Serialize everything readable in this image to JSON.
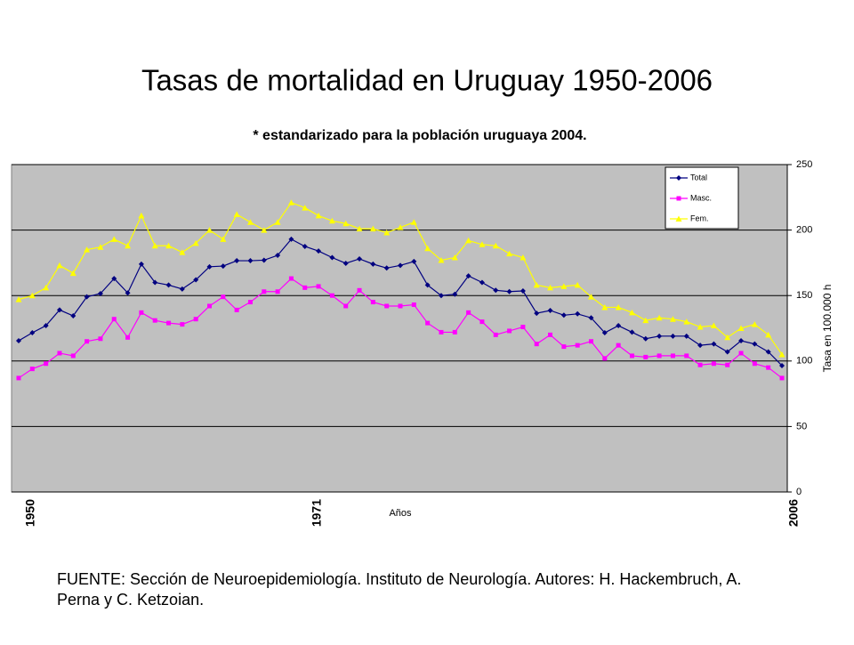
{
  "chart_data": {
    "type": "line",
    "title": "Tasas de mortalidad en Uruguay  1950-2006",
    "subtitle": "* estandarizado para la población uruguaya 2004.",
    "x_label": "Años",
    "y_label": "Tasa en 100.000 h",
    "source": "FUENTE: Sección de Neuroepidemiología. Instituto de Neurología. Autores: H. Hackembruch, A. Perna y C. Ketzoian.",
    "categories": [
      "1950",
      null,
      null,
      null,
      null,
      null,
      null,
      null,
      null,
      null,
      null,
      null,
      null,
      null,
      null,
      null,
      null,
      null,
      null,
      null,
      null,
      "1971",
      null,
      null,
      null,
      null,
      null,
      null,
      null,
      null,
      null,
      null,
      null,
      null,
      null,
      null,
      null,
      null,
      null,
      null,
      null,
      null,
      null,
      null,
      null,
      null,
      null,
      null,
      null,
      null,
      null,
      null,
      null,
      null,
      null,
      null,
      "2006"
    ],
    "series": [
      {
        "name": "Total",
        "color": "#000080",
        "marker": "diamond",
        "values": [
          115.5,
          121.6,
          127,
          139,
          134.5,
          149,
          151.5,
          163,
          152,
          174,
          160,
          158,
          155,
          162,
          172,
          172.5,
          176.6,
          176.6,
          177,
          180.7,
          193,
          187.5,
          184,
          179,
          174.6,
          178,
          174,
          171,
          173,
          176,
          158,
          150,
          151,
          165,
          160,
          154,
          153,
          153.5,
          136.5,
          138.6,
          135,
          136,
          133,
          121.6,
          127,
          122,
          117,
          119,
          119,
          119,
          112,
          113,
          107,
          115.5,
          113,
          107,
          96.5
        ]
      },
      {
        "name": "Masc.",
        "color": "#ff00ff",
        "marker": "square",
        "values": [
          87,
          94,
          98,
          106,
          104,
          115,
          117,
          132,
          118,
          137,
          131,
          129,
          128,
          132,
          142,
          149,
          139,
          145,
          153,
          153,
          163,
          156,
          157,
          150,
          142,
          154,
          145,
          142,
          142,
          143,
          129,
          122,
          122,
          137,
          130,
          120,
          123,
          126,
          113,
          120,
          111,
          112,
          115,
          102,
          112,
          104,
          103,
          104,
          104,
          104,
          97,
          98,
          97,
          106,
          98,
          95,
          87
        ]
      },
      {
        "name": "Fem.",
        "color": "#ffff00",
        "marker": "triangle",
        "values": [
          147,
          150,
          156,
          173,
          167,
          185,
          187,
          193,
          188,
          211,
          188,
          188,
          183,
          190,
          200,
          193,
          212,
          206,
          200,
          206,
          221,
          217,
          211,
          207,
          205,
          201,
          201,
          198,
          202,
          206,
          186,
          177,
          179,
          192,
          189,
          188,
          182,
          179,
          158,
          156,
          157,
          158,
          149,
          141,
          141,
          137,
          131,
          133,
          132,
          130,
          126,
          127,
          118,
          125,
          128,
          120,
          105
        ]
      }
    ],
    "ylim": [
      0,
      250
    ],
    "yticks": [
      0,
      50,
      100,
      150,
      200,
      250
    ],
    "grid": true,
    "legend": "upper right"
  }
}
